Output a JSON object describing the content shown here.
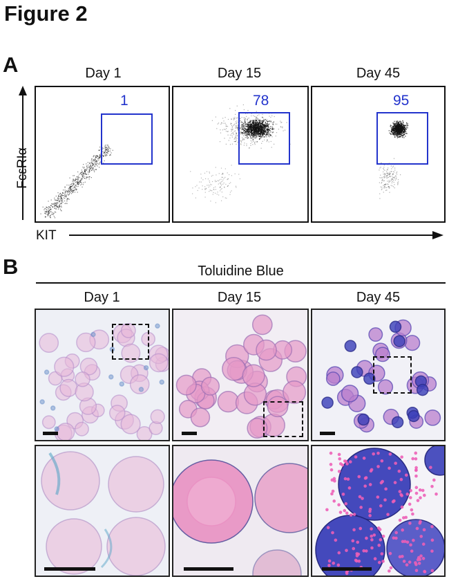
{
  "figure_title": "Figure 2",
  "panel_a": {
    "letter": "A",
    "y_axis_label": "FcεRIα",
    "x_axis_label": "KIT",
    "plots": [
      {
        "day": "Day 1",
        "gate_percent": "1"
      },
      {
        "day": "Day 15",
        "gate_percent": "78"
      },
      {
        "day": "Day 45",
        "gate_percent": "95"
      }
    ]
  },
  "panel_b": {
    "letter": "B",
    "stain_label": "Toluidine Blue",
    "columns": [
      {
        "day": "Day 1"
      },
      {
        "day": "Day 15"
      },
      {
        "day": "Day 45"
      }
    ]
  },
  "colors": {
    "gate": "#2233cc",
    "background_stain": "#eef0f6",
    "eosin_pink": "#e07ab4",
    "toluidine_blue": "#3a3fb8"
  }
}
